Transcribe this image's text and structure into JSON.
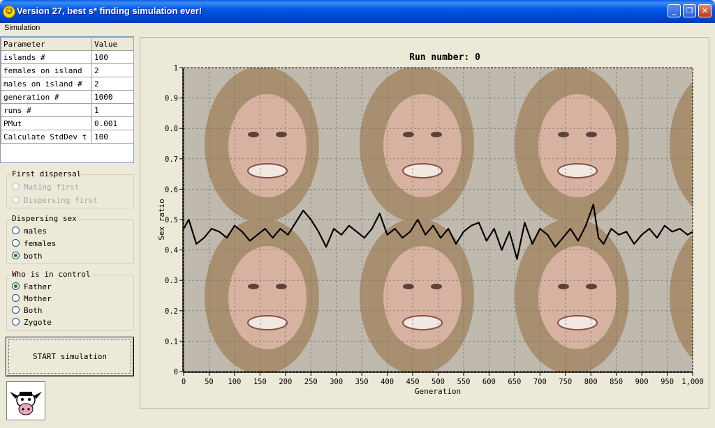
{
  "window": {
    "title": "Version 27, best s* finding simulation ever!",
    "icon": "smiley-icon"
  },
  "menu": {
    "items": [
      "Simulation"
    ]
  },
  "params": {
    "headers": [
      "Parameter",
      "Value"
    ],
    "rows": [
      [
        "islands #",
        "100"
      ],
      [
        "females on island",
        "2"
      ],
      [
        "males on island #",
        "2"
      ],
      [
        "generation #",
        "1000"
      ],
      [
        "runs #",
        "1"
      ],
      [
        "PMut",
        "0.001"
      ],
      [
        "Calculate StdDev t",
        "100"
      ]
    ]
  },
  "first_dispersal": {
    "title": "First dispersal",
    "options": [
      "Mating first",
      "Dispersing first"
    ]
  },
  "dispersing_sex": {
    "title": "Dispersing sex",
    "options": [
      "males",
      "females",
      "both"
    ],
    "selected": "both"
  },
  "control": {
    "title": "Who is in control",
    "options": [
      "Father",
      "Mother",
      "Both",
      "Zygote"
    ],
    "selected": "Father"
  },
  "start_label": "START simulation",
  "logo": {
    "icon": "cow-icon"
  },
  "chart_data": {
    "type": "line",
    "title": "Run number: 0",
    "xlabel": "Generation",
    "ylabel": "Sex ratio",
    "xlim": [
      0,
      1000
    ],
    "ylim": [
      0,
      1
    ],
    "x_ticks": [
      "0",
      "50",
      "100",
      "150",
      "200",
      "250",
      "300",
      "350",
      "400",
      "450",
      "500",
      "550",
      "600",
      "650",
      "700",
      "750",
      "800",
      "850",
      "900",
      "950",
      "1,000"
    ],
    "y_ticks": [
      "0",
      "0.1",
      "0.2",
      "0.3",
      "0.4",
      "0.5",
      "0.6",
      "0.7",
      "0.8",
      "0.9",
      "1"
    ],
    "grid": true,
    "line_color": "#000000",
    "series": [
      {
        "x": [
          0,
          10,
          25,
          40,
          55,
          70,
          85,
          100,
          115,
          130,
          145,
          160,
          175,
          190,
          205,
          220,
          235,
          250,
          265,
          280,
          295,
          310,
          325,
          340,
          355,
          370,
          385,
          400,
          415,
          430,
          445,
          460,
          475,
          490,
          505,
          520,
          535,
          550,
          565,
          580,
          595,
          610,
          625,
          640,
          655,
          670,
          685,
          700,
          715,
          730,
          745,
          760,
          775,
          790,
          805,
          815,
          825,
          840,
          855,
          870,
          885,
          900,
          915,
          930,
          945,
          960,
          975,
          990,
          1000
        ],
        "y": [
          0.47,
          0.5,
          0.42,
          0.44,
          0.47,
          0.46,
          0.44,
          0.48,
          0.46,
          0.43,
          0.45,
          0.47,
          0.44,
          0.47,
          0.45,
          0.49,
          0.53,
          0.5,
          0.46,
          0.41,
          0.47,
          0.45,
          0.48,
          0.46,
          0.44,
          0.47,
          0.52,
          0.45,
          0.47,
          0.44,
          0.46,
          0.5,
          0.45,
          0.48,
          0.44,
          0.47,
          0.42,
          0.46,
          0.48,
          0.49,
          0.43,
          0.47,
          0.4,
          0.46,
          0.37,
          0.49,
          0.42,
          0.47,
          0.45,
          0.41,
          0.44,
          0.47,
          0.43,
          0.48,
          0.55,
          0.44,
          0.42,
          0.47,
          0.45,
          0.46,
          0.42,
          0.45,
          0.47,
          0.44,
          0.48,
          0.46,
          0.47,
          0.45,
          0.46
        ]
      }
    ]
  }
}
